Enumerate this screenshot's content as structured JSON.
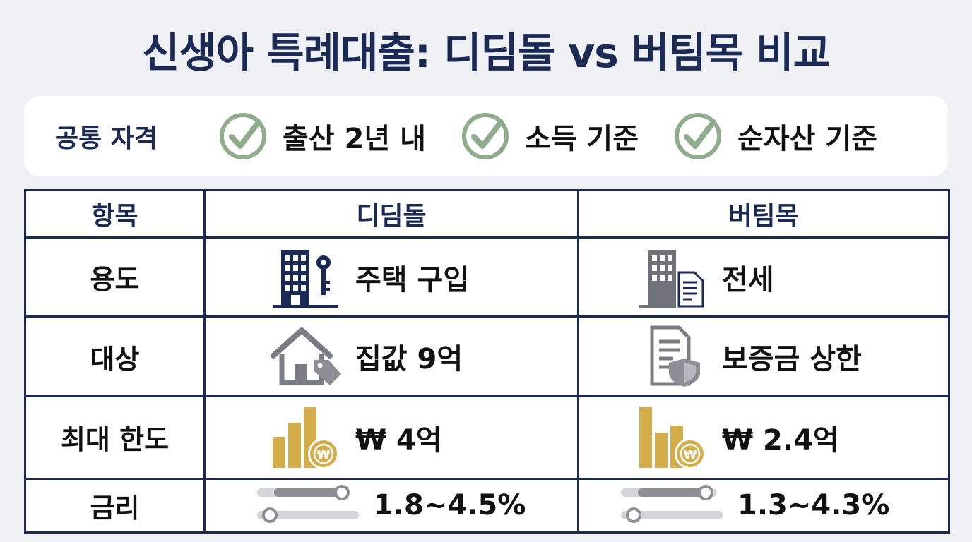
{
  "title": "신생아 특례대출: 디딤돌 vs 버팀목 비교",
  "common": {
    "label": "공통 자격",
    "criteria": [
      "출산 2년 내",
      "소득 기준",
      "순자산 기준"
    ]
  },
  "table": {
    "headers": [
      "항목",
      "디딤돌",
      "버팀목"
    ],
    "rows": [
      {
        "label": "용도",
        "didimdol": "주택 구입",
        "didimdol_icon": "building-key-icon",
        "beotimmok": "전세",
        "beotimmok_icon": "building-document-icon"
      },
      {
        "label": "대상",
        "didimdol": "집값 9억",
        "didimdol_icon": "house-tag-icon",
        "beotimmok": "보증금 상한",
        "beotimmok_icon": "document-shield-icon"
      },
      {
        "label": "최대 한도",
        "didimdol": "₩ 4억",
        "didimdol_icon": "bar-chart-coin-icon",
        "beotimmok": "₩ 2.4억",
        "beotimmok_icon": "bar-chart-coin-icon"
      },
      {
        "label": "금리",
        "didimdol": "1.8~4.5%",
        "didimdol_icon": "rate-slider-icon",
        "beotimmok": "1.3~4.3%",
        "beotimmok_icon": "rate-slider-icon"
      }
    ]
  },
  "colors": {
    "navy": "#1b2a55",
    "check_green": "#8fac8c",
    "gold": "#d3ad4a",
    "gray": "#8c8f95"
  }
}
